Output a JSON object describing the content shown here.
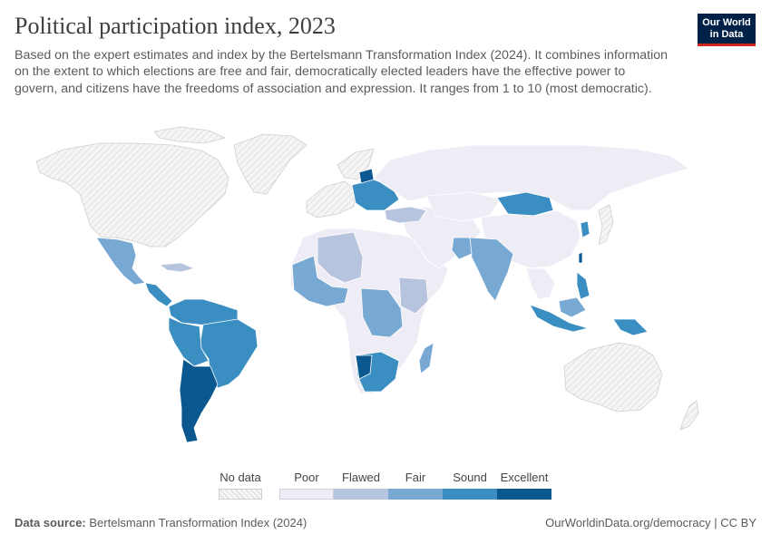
{
  "title": "Political participation index, 2023",
  "subtitle": "Based on the expert estimates and index by the Bertelsmann Transformation Index (2024). It combines information on the extent to which elections are free and fair, democratically elected leaders have the effective power to govern, and citizens have the freedoms of association and expression. It ranges from 1 to 10 (most democratic).",
  "logo": {
    "line1": "Our World",
    "line2": "in Data"
  },
  "legend": {
    "no_data": "No data",
    "categories": [
      "Poor",
      "Flawed",
      "Fair",
      "Sound",
      "Excellent"
    ],
    "colors": {
      "no_data": "#f2f2f2",
      "Poor": "#eeedf5",
      "Flawed": "#b6c4de",
      "Fair": "#78a9d3",
      "Sound": "#3b8ec2",
      "Excellent": "#0a588f"
    }
  },
  "footer": {
    "source_label": "Data source:",
    "source": "Bertelsmann Transformation Index (2024)",
    "url": "OurWorldinData.org/democracy | CC BY"
  }
}
